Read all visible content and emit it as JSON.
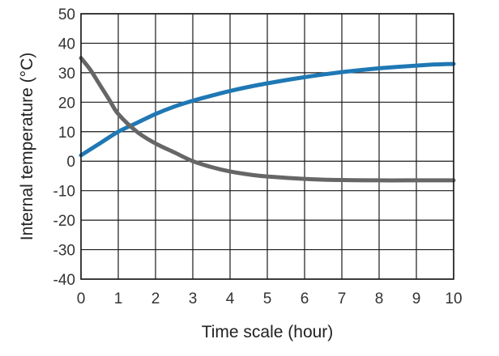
{
  "chart_data": {
    "type": "line",
    "title": "",
    "xlabel": "Time scale (hour)",
    "ylabel": "Internal temperature (°C)",
    "xlim": [
      0,
      10
    ],
    "ylim": [
      -40,
      50
    ],
    "x_ticks": [
      0,
      1,
      2,
      3,
      4,
      5,
      6,
      7,
      8,
      9,
      10
    ],
    "y_ticks": [
      -40,
      -30,
      -20,
      -10,
      0,
      10,
      20,
      30,
      40,
      50
    ],
    "grid": true,
    "legend": "none",
    "series": [
      {
        "color": "#1f78b4",
        "x": [
          0,
          0.5,
          1,
          1.5,
          2,
          2.5,
          3,
          3.5,
          4,
          4.5,
          5,
          5.5,
          6,
          6.5,
          7,
          7.5,
          8,
          8.5,
          9,
          9.5,
          10
        ],
        "y": [
          2,
          6,
          10,
          13,
          16,
          18.5,
          20.5,
          22.2,
          23.8,
          25.2,
          26.4,
          27.5,
          28.5,
          29.4,
          30.2,
          30.9,
          31.5,
          32,
          32.4,
          32.8,
          33
        ]
      },
      {
        "color": "#666666",
        "x": [
          0,
          0.25,
          0.5,
          0.75,
          1,
          1.5,
          2,
          2.5,
          3,
          3.5,
          4,
          4.5,
          5,
          6,
          7,
          8,
          9,
          10
        ],
        "y": [
          35,
          31,
          26,
          21,
          16,
          10,
          6,
          3,
          0,
          -2,
          -3.5,
          -4.5,
          -5.2,
          -6,
          -6.4,
          -6.5,
          -6.5,
          -6.5
        ]
      }
    ]
  }
}
